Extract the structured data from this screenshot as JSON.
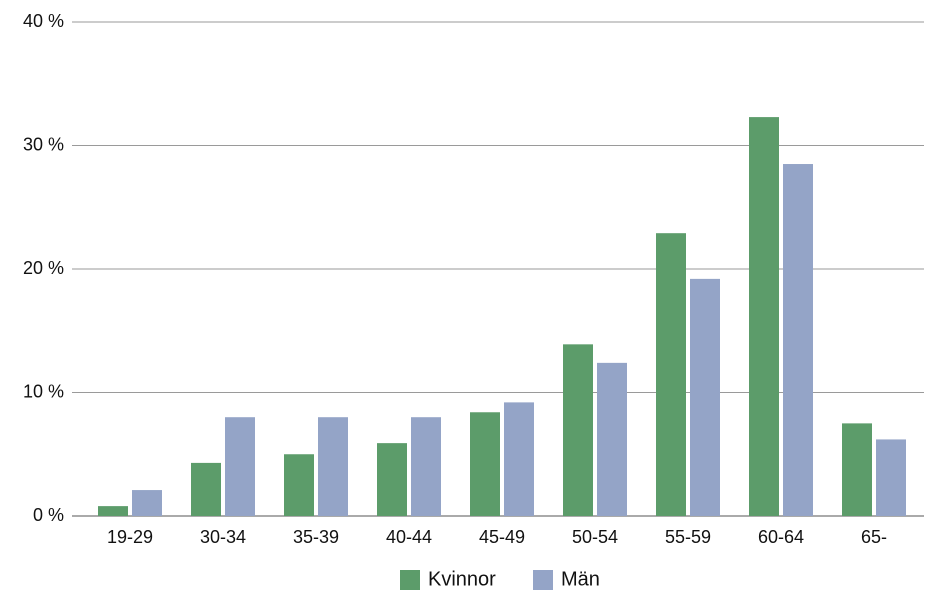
{
  "chart_data": {
    "type": "bar",
    "categories": [
      "19-29",
      "30-34",
      "35-39",
      "40-44",
      "45-49",
      "50-54",
      "55-59",
      "60-64",
      "65-"
    ],
    "series": [
      {
        "name": "Kvinnor",
        "color": "#5c9c6a",
        "values": [
          0.8,
          4.3,
          5.0,
          5.9,
          8.4,
          13.9,
          22.9,
          32.3,
          7.5
        ]
      },
      {
        "name": "Män",
        "color": "#94a4c7",
        "values": [
          2.1,
          8.0,
          8.0,
          8.0,
          9.2,
          12.4,
          19.2,
          28.5,
          6.2
        ]
      }
    ],
    "ylim": [
      0,
      40
    ],
    "yticks": [
      0,
      10,
      20,
      30,
      40
    ],
    "ytick_labels": [
      "0 %",
      "10 %",
      "20 %",
      "30 %",
      "40 %"
    ],
    "grid": true,
    "legend_position": "bottom-center"
  }
}
